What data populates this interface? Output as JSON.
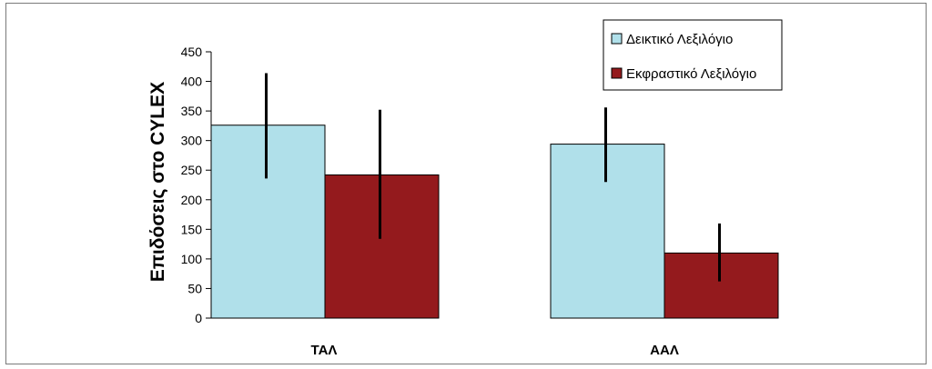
{
  "chart_data": {
    "type": "bar",
    "title": "",
    "xlabel": "",
    "ylabel": "Επιδόσεις στο CYLEX",
    "categories": [
      "ΤΑΛ",
      "ΑΑΛ"
    ],
    "ylim": [
      0,
      450
    ],
    "yticks": [
      0,
      50,
      100,
      150,
      200,
      250,
      300,
      350,
      400,
      450
    ],
    "grid": false,
    "legend_position": "top-right",
    "series": [
      {
        "name": "Δεικτικό Λεξιλόγιο",
        "color": "#b0e0ea",
        "values": [
          326,
          294
        ],
        "error_low": [
          236,
          230
        ],
        "error_high": [
          414,
          356
        ]
      },
      {
        "name": "Εκφραστικό Λεξιλόγιο",
        "color": "#941a1d",
        "values": [
          242,
          110
        ],
        "error_low": [
          134,
          62
        ],
        "error_high": [
          352,
          160
        ]
      }
    ]
  }
}
